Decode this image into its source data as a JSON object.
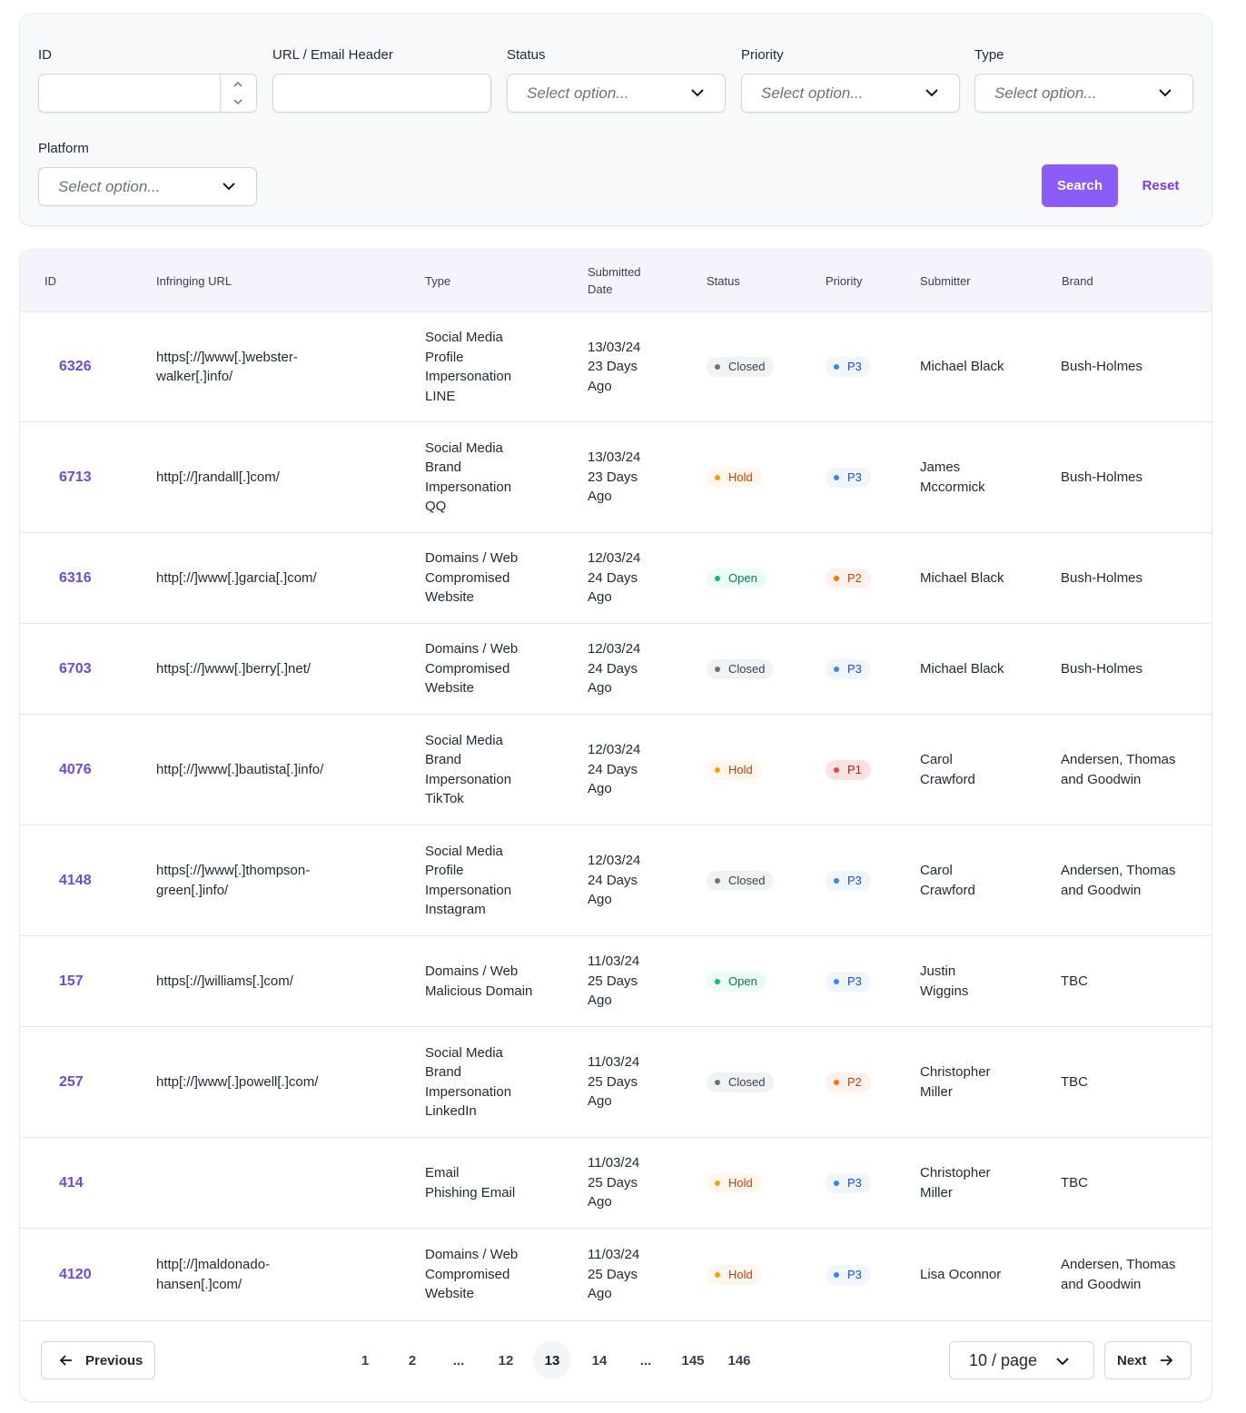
{
  "filters": {
    "id_label": "ID",
    "url_label": "URL / Email Header",
    "status_label": "Status",
    "priority_label": "Priority",
    "type_label": "Type",
    "platform_label": "Platform",
    "select_placeholder": "Select option...",
    "search_label": "Search",
    "reset_label": "Reset"
  },
  "table": {
    "headers": [
      "ID",
      "Infringing URL",
      "Type",
      "Submitted\nDate",
      "Status",
      "Priority",
      "Submitter",
      "Brand"
    ],
    "rows": [
      {
        "id": "6326",
        "url": "https[://]www[.]webster-\nwalker[.]info/",
        "type": "Social Media\nProfile\nImpersonation\nLINE",
        "date": "13/03/24\n23 Days\nAgo",
        "status": "Closed",
        "priority": "P3",
        "submitter": "Michael Black",
        "brand": "Bush-Holmes"
      },
      {
        "id": "6713",
        "url": "http[://]randall[.]com/",
        "type": "Social Media\nBrand\nImpersonation\nQQ",
        "date": "13/03/24\n23 Days\nAgo",
        "status": "Hold",
        "priority": "P3",
        "submitter": "James\nMccormick",
        "brand": "Bush-Holmes"
      },
      {
        "id": "6316",
        "url": "http[://]www[.]garcia[.]com/",
        "type": "Domains / Web\nCompromised\nWebsite",
        "date": "12/03/24\n24 Days\nAgo",
        "status": "Open",
        "priority": "P2",
        "submitter": "Michael Black",
        "brand": "Bush-Holmes"
      },
      {
        "id": "6703",
        "url": "https[://]www[.]berry[.]net/",
        "type": "Domains / Web\nCompromised\nWebsite",
        "date": "12/03/24\n24 Days\nAgo",
        "status": "Closed",
        "priority": "P3",
        "submitter": "Michael Black",
        "brand": "Bush-Holmes"
      },
      {
        "id": "4076",
        "url": "http[://]www[.]bautista[.]info/",
        "type": "Social Media\nBrand\nImpersonation\nTikTok",
        "date": "12/03/24\n24 Days\nAgo",
        "status": "Hold",
        "priority": "P1",
        "submitter": "Carol\nCrawford",
        "brand": "Andersen, Thomas\nand Goodwin"
      },
      {
        "id": "4148",
        "url": "https[://]www[.]thompson-\ngreen[.]info/",
        "type": "Social Media\nProfile\nImpersonation\nInstagram",
        "date": "12/03/24\n24 Days\nAgo",
        "status": "Closed",
        "priority": "P3",
        "submitter": "Carol\nCrawford",
        "brand": "Andersen, Thomas\nand Goodwin"
      },
      {
        "id": "157",
        "url": "https[://]williams[.]com/",
        "type": "Domains / Web\nMalicious Domain",
        "date": "11/03/24\n25 Days\nAgo",
        "status": "Open",
        "priority": "P3",
        "submitter": "Justin\nWiggins",
        "brand": "TBC"
      },
      {
        "id": "257",
        "url": "http[://]www[.]powell[.]com/",
        "type": "Social Media\nBrand\nImpersonation\nLinkedIn",
        "date": "11/03/24\n25 Days\nAgo",
        "status": "Closed",
        "priority": "P2",
        "submitter": "Christopher\nMiller",
        "brand": "TBC"
      },
      {
        "id": "414",
        "url": "",
        "type": "Email\nPhishing Email",
        "date": "11/03/24\n25 Days\nAgo",
        "status": "Hold",
        "priority": "P3",
        "submitter": "Christopher\nMiller",
        "brand": "TBC"
      },
      {
        "id": "4120",
        "url": "http[://]maldonado-\nhansen[.]com/",
        "type": "Domains / Web\nCompromised\nWebsite",
        "date": "11/03/24\n25 Days\nAgo",
        "status": "Hold",
        "priority": "P3",
        "submitter": "Lisa Oconnor",
        "brand": "Andersen, Thomas\nand Goodwin"
      }
    ]
  },
  "pagination": {
    "previous_label": "Previous",
    "next_label": "Next",
    "pages": [
      "1",
      "2",
      "...",
      "12",
      "13",
      "14",
      "...",
      "145",
      "146"
    ],
    "current_page": "13",
    "page_size_label": "10 / page"
  },
  "colors": {
    "accent": "#8b5cf6",
    "closed_bg": "#f1f2f4",
    "closed_fg": "#374151",
    "closed_dot": "#6b7280",
    "hold_bg": "#fff7ed",
    "hold_fg": "#c2410c",
    "hold_dot": "#f59e0b",
    "open_bg": "#ecfdf5",
    "open_fg": "#047857",
    "open_dot": "#10b981",
    "p3_bg": "#eff6ff",
    "p3_fg": "#1d4ed8",
    "p3_dot": "#3b82f6",
    "p2_bg": "#fff1ec",
    "p2_fg": "#c2410c",
    "p2_dot": "#f97316",
    "p1_bg": "#fee2e2",
    "p1_fg": "#b91c1c",
    "p1_dot": "#ef4444"
  }
}
